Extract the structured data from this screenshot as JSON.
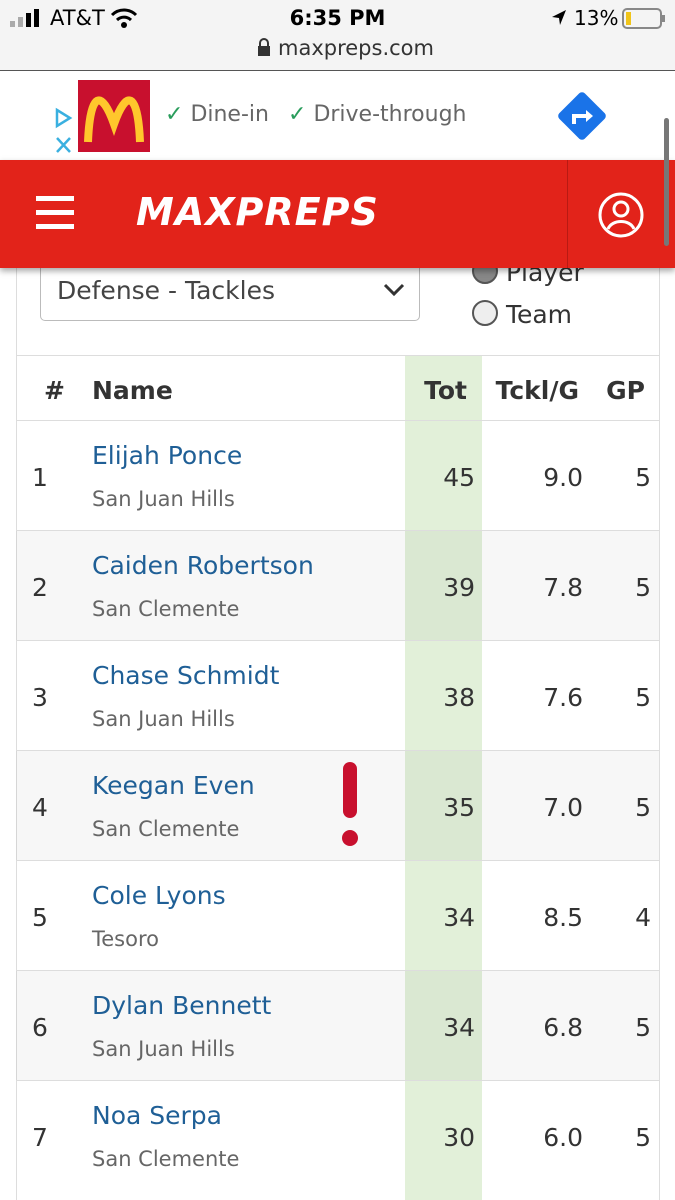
{
  "status_bar": {
    "carrier": "AT&T",
    "time": "6:35 PM",
    "battery": "13%",
    "url": "maxpreps.com"
  },
  "ad": {
    "options": [
      "Dine-in",
      "Drive-through"
    ]
  },
  "header": {
    "logo": "MAXPREPS"
  },
  "filters": {
    "stat_select": "Defense - Tackles",
    "radios": [
      "Player",
      "Team"
    ]
  },
  "table": {
    "columns": [
      "#",
      "Name",
      "Tot",
      "Tckl/G",
      "GP"
    ],
    "rows": [
      {
        "rank": 1,
        "name": "Elijah Ponce",
        "school": "San Juan Hills",
        "tot": 45,
        "tckl_per_game": "9.0",
        "gp": 5
      },
      {
        "rank": 2,
        "name": "Caiden Robertson",
        "school": "San Clemente",
        "tot": 39,
        "tckl_per_game": "7.8",
        "gp": 5
      },
      {
        "rank": 3,
        "name": "Chase Schmidt",
        "school": "San Juan Hills",
        "tot": 38,
        "tckl_per_game": "7.6",
        "gp": 5
      },
      {
        "rank": 4,
        "name": "Keegan Even",
        "school": "San Clemente",
        "tot": 35,
        "tckl_per_game": "7.0",
        "gp": 5
      },
      {
        "rank": 5,
        "name": "Cole Lyons",
        "school": "Tesoro",
        "tot": 34,
        "tckl_per_game": "8.5",
        "gp": 4
      },
      {
        "rank": 6,
        "name": "Dylan Bennett",
        "school": "San Juan Hills",
        "tot": 34,
        "tckl_per_game": "6.8",
        "gp": 5
      },
      {
        "rank": 7,
        "name": "Noa Serpa",
        "school": "San Clemente",
        "tot": 30,
        "tckl_per_game": "6.0",
        "gp": 5
      }
    ]
  }
}
